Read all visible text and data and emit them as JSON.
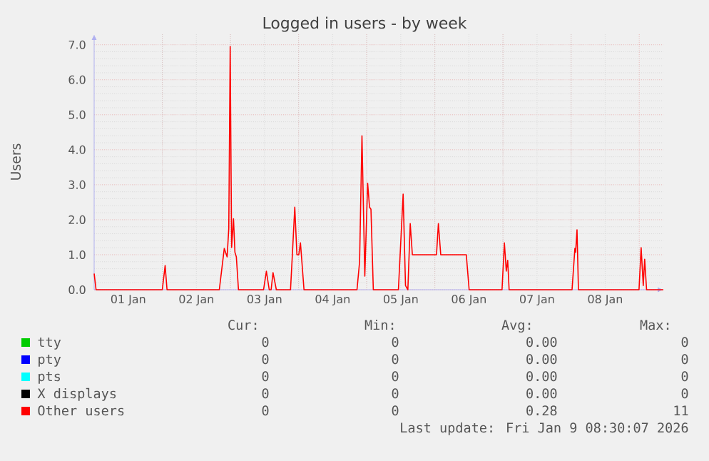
{
  "chart_data": {
    "type": "line",
    "title": "Logged in users - by week",
    "ylabel": "Users",
    "xlim": [
      "2026-01-01T00:00",
      "2026-01-09T08:30"
    ],
    "ylim": [
      0,
      7.3
    ],
    "xticks": [
      {
        "value": "2026-01-01T12:00",
        "label": "01 Jan"
      },
      {
        "value": "2026-01-02T00:00",
        "label": null
      },
      {
        "value": "2026-01-02T12:00",
        "label": "02 Jan"
      },
      {
        "value": "2026-01-03T00:00",
        "label": null
      },
      {
        "value": "2026-01-03T12:00",
        "label": "03 Jan"
      },
      {
        "value": "2026-01-04T00:00",
        "label": null
      },
      {
        "value": "2026-01-04T12:00",
        "label": "04 Jan"
      },
      {
        "value": "2026-01-05T00:00",
        "label": null
      },
      {
        "value": "2026-01-05T12:00",
        "label": "05 Jan"
      },
      {
        "value": "2026-01-06T00:00",
        "label": null
      },
      {
        "value": "2026-01-06T12:00",
        "label": "06 Jan"
      },
      {
        "value": "2026-01-07T00:00",
        "label": null
      },
      {
        "value": "2026-01-07T12:00",
        "label": "07 Jan"
      },
      {
        "value": "2026-01-08T00:00",
        "label": null
      },
      {
        "value": "2026-01-08T12:00",
        "label": "08 Jan"
      },
      {
        "value": "2026-01-09T00:00",
        "label": null
      }
    ],
    "yticks": [
      {
        "value": 0,
        "label": "0.0"
      },
      {
        "value": 1,
        "label": "1.0"
      },
      {
        "value": 2,
        "label": "2.0"
      },
      {
        "value": 3,
        "label": "3.0"
      },
      {
        "value": 4,
        "label": "4.0"
      },
      {
        "value": 5,
        "label": "5.0"
      },
      {
        "value": 6,
        "label": "6.0"
      },
      {
        "value": 7,
        "label": "7.0"
      }
    ],
    "grid": true,
    "legend": "bottom",
    "series": [
      {
        "name": "tty",
        "color": "#00cc00"
      },
      {
        "name": "pty",
        "color": "#0000ff"
      },
      {
        "name": "pts",
        "color": "#00ffff"
      },
      {
        "name": "X displays",
        "color": "#000000"
      },
      {
        "name": "Other users",
        "color": "#ff0000",
        "x": [
          "2026-01-01T00:00",
          "2026-01-01T00:40",
          "2026-01-02T00:00",
          "2026-01-02T01:00",
          "2026-01-02T01:40",
          "2026-01-02T20:05",
          "2026-01-02T21:50",
          "2026-01-02T22:50",
          "2026-01-02T23:25",
          "2026-01-02T23:55",
          "2026-01-03T00:25",
          "2026-01-03T01:05",
          "2026-01-03T01:35",
          "2026-01-03T02:05",
          "2026-01-03T02:50",
          "2026-01-03T11:40",
          "2026-01-03T12:40",
          "2026-01-03T13:40",
          "2026-01-03T14:20",
          "2026-01-03T15:00",
          "2026-01-03T16:10",
          "2026-01-03T21:10",
          "2026-01-03T21:40",
          "2026-01-03T22:40",
          "2026-01-03T23:25",
          "2026-01-04T00:05",
          "2026-01-04T00:40",
          "2026-01-04T01:55",
          "2026-01-04T20:35",
          "2026-01-04T21:30",
          "2026-01-04T22:20",
          "2026-01-04T23:20",
          "2026-01-05T00:20",
          "2026-01-05T01:00",
          "2026-01-05T01:30",
          "2026-01-05T02:20",
          "2026-01-05T11:10",
          "2026-01-05T12:50",
          "2026-01-05T13:40",
          "2026-01-05T14:30",
          "2026-01-05T15:20",
          "2026-01-05T16:05",
          "2026-01-06T00:35",
          "2026-01-06T01:15",
          "2026-01-06T02:05",
          "2026-01-06T11:05",
          "2026-01-06T12:05",
          "2026-01-06T23:40",
          "2026-01-07T00:30",
          "2026-01-07T01:10",
          "2026-01-07T01:40",
          "2026-01-07T02:10",
          "2026-01-08T00:20",
          "2026-01-08T01:20",
          "2026-01-08T01:35",
          "2026-01-08T02:05",
          "2026-01-08T02:35",
          "2026-01-08T23:55",
          "2026-01-09T00:40",
          "2026-01-09T01:25",
          "2026-01-09T01:55",
          "2026-01-09T02:35",
          "2026-01-09T08:30"
        ],
        "values": [
          0.46,
          0,
          0,
          0.69,
          0,
          0,
          1.18,
          0.94,
          1.75,
          6.95,
          1.21,
          2.03,
          1.07,
          0.94,
          0,
          0,
          0.53,
          0,
          0,
          0.49,
          0,
          0,
          0.77,
          2.36,
          1.0,
          1.0,
          1.34,
          0,
          0,
          0.8,
          4.4,
          0.39,
          3.04,
          2.36,
          2.3,
          0,
          0,
          2.73,
          0.12,
          0,
          1.89,
          1.0,
          1.0,
          1.89,
          1.0,
          1.0,
          0,
          0,
          1.34,
          0.53,
          0.84,
          0,
          0,
          1.18,
          1.07,
          1.71,
          0,
          0,
          1.2,
          0.12,
          0.87,
          0,
          0
        ]
      }
    ],
    "annotations": [
      "Cur:",
      "Min:",
      "Avg:",
      "Max:",
      "0",
      "0",
      "0.00",
      "0",
      "0",
      "0",
      "0.00",
      "0",
      "0",
      "0",
      "0.00",
      "0",
      "0",
      "0",
      "0.00",
      "0",
      "0",
      "0",
      "0.28",
      "11",
      "Last update: Fri Jan  9 08:30:07 2026"
    ]
  }
}
